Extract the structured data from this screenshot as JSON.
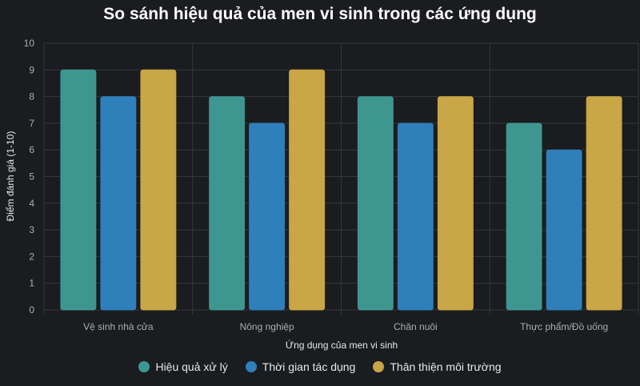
{
  "chart_data": {
    "type": "bar",
    "title": "So sánh hiệu quả của men vi sinh trong các ứng dụng",
    "xlabel": "Ứng dụng của men vi sinh",
    "ylabel": "Điểm đánh giá (1-10)",
    "ylim": [
      0,
      10
    ],
    "yticks": [
      "0",
      "1",
      "2",
      "3",
      "4",
      "5",
      "6",
      "7",
      "8",
      "9",
      "10"
    ],
    "categories": [
      "Vệ sinh nhà cửa",
      "Nông nghiệp",
      "Chăn nuôi",
      "Thực phẩm/Đồ uống"
    ],
    "series": [
      {
        "name": "Hiệu quả xử lý",
        "color": "#3e9690",
        "values": [
          9,
          8,
          8,
          7
        ]
      },
      {
        "name": "Thời gian tác dụng",
        "color": "#2f7fba",
        "values": [
          8,
          7,
          7,
          6
        ]
      },
      {
        "name": "Thân thiện môi trường",
        "color": "#c9a646",
        "values": [
          9,
          9,
          8,
          8
        ]
      }
    ],
    "grid": true,
    "legend_position": "bottom"
  }
}
